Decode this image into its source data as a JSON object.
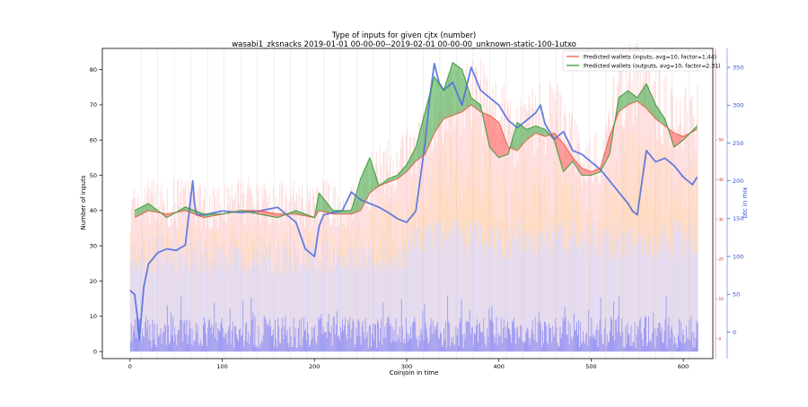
{
  "chart_data": {
    "type": "line",
    "title": "Type of inputs for given cjtx (number)",
    "subtitle": "wasabi1_zksnacks 2019-01-01 00-00-00--2019-02-01 00-00-00_unknown-static-100-1utxo",
    "xlabel": "Coinjoin in time",
    "ylabel": "Number of inputs",
    "y2label": "btc in mix",
    "xlim": [
      -30,
      632
    ],
    "ylim": [
      -2,
      86
    ],
    "y2lim": [
      -35,
      375
    ],
    "y3lim": [
      -5,
      73
    ],
    "x_ticks": [
      0,
      100,
      200,
      300,
      400,
      500,
      600
    ],
    "y_ticks": [
      0,
      10,
      20,
      30,
      40,
      50,
      60,
      70,
      80
    ],
    "y2_ticks": [
      0,
      50,
      100,
      150,
      200,
      250,
      300,
      350
    ],
    "y3_ticks": [
      0,
      10,
      20,
      30,
      40,
      50
    ],
    "grid": false,
    "legend_position": "top-right",
    "colors": {
      "inputs_line": "#e8604c",
      "outputs_line": "#3a9a3a",
      "fill_red": "#ff6b6b",
      "fill_green": "#4caf50",
      "btc_line": "#5470e0",
      "axis2": "#3050d0",
      "axis3": "#cc2222",
      "bars_blue": "#7f7ff5",
      "bars_lavender": "#dcdcff",
      "bars_orange": "#ffd9a6",
      "bars_pink": "#ffc4c4",
      "vlines": "#c8c8c8"
    },
    "series": [
      {
        "name": "Predicted wallets (inputs, avg=10, factor=1.44)",
        "x": [
          5,
          20,
          40,
          60,
          80,
          100,
          120,
          140,
          160,
          180,
          200,
          205,
          220,
          240,
          250,
          260,
          270,
          280,
          290,
          300,
          310,
          320,
          330,
          340,
          350,
          360,
          370,
          380,
          390,
          400,
          410,
          420,
          430,
          440,
          450,
          460,
          470,
          480,
          490,
          500,
          510,
          520,
          530,
          540,
          550,
          560,
          570,
          580,
          590,
          600,
          615
        ],
        "values": [
          38,
          40,
          39,
          40,
          38,
          39,
          40,
          40,
          39,
          39,
          38,
          40,
          39,
          39,
          40,
          45,
          47,
          48,
          49,
          51,
          54,
          56,
          62,
          66,
          67,
          68,
          70,
          68,
          67,
          65,
          58,
          57,
          60,
          62,
          61,
          62,
          59,
          55,
          52,
          51,
          52,
          61,
          68,
          70,
          71,
          69,
          66,
          64,
          62,
          61,
          63
        ]
      },
      {
        "name": "Predicted wallets (outputs, avg=10, factor=2.31)",
        "x": [
          5,
          20,
          40,
          60,
          80,
          100,
          120,
          140,
          160,
          180,
          200,
          205,
          220,
          240,
          250,
          260,
          270,
          280,
          290,
          300,
          310,
          320,
          330,
          340,
          350,
          360,
          370,
          380,
          390,
          400,
          410,
          420,
          430,
          440,
          450,
          460,
          470,
          480,
          490,
          500,
          510,
          520,
          530,
          540,
          550,
          560,
          570,
          580,
          590,
          600,
          615
        ],
        "values": [
          40,
          42,
          38,
          41,
          39,
          39,
          40,
          39,
          38,
          40,
          38,
          45,
          40,
          40,
          49,
          55,
          47,
          49,
          50,
          53,
          58,
          68,
          78,
          74,
          82,
          80,
          72,
          70,
          58,
          55,
          56,
          65,
          63,
          64,
          63,
          60,
          51,
          54,
          50,
          50,
          51,
          56,
          72,
          74,
          72,
          76,
          70,
          66,
          58,
          60,
          64
        ]
      },
      {
        "name": "btc in mix",
        "axis": "y2",
        "x": [
          0,
          5,
          8,
          10,
          15,
          20,
          30,
          40,
          50,
          60,
          68,
          70,
          72,
          80,
          100,
          120,
          140,
          160,
          180,
          190,
          200,
          205,
          210,
          220,
          230,
          240,
          250,
          260,
          270,
          280,
          290,
          300,
          310,
          320,
          325,
          330,
          335,
          340,
          350,
          360,
          370,
          380,
          390,
          400,
          410,
          420,
          430,
          440,
          445,
          450,
          460,
          470,
          480,
          490,
          500,
          510,
          520,
          530,
          540,
          545,
          550,
          560,
          570,
          580,
          590,
          600,
          610,
          615
        ],
        "values": [
          55,
          50,
          20,
          -10,
          60,
          90,
          105,
          110,
          108,
          115,
          200,
          170,
          155,
          155,
          160,
          158,
          160,
          165,
          145,
          110,
          100,
          140,
          155,
          158,
          160,
          185,
          175,
          170,
          165,
          158,
          150,
          145,
          160,
          250,
          310,
          355,
          330,
          320,
          330,
          300,
          350,
          320,
          310,
          300,
          280,
          270,
          280,
          290,
          300,
          275,
          255,
          265,
          240,
          235,
          225,
          215,
          200,
          185,
          170,
          160,
          155,
          240,
          225,
          230,
          220,
          205,
          195,
          205
        ]
      }
    ]
  }
}
